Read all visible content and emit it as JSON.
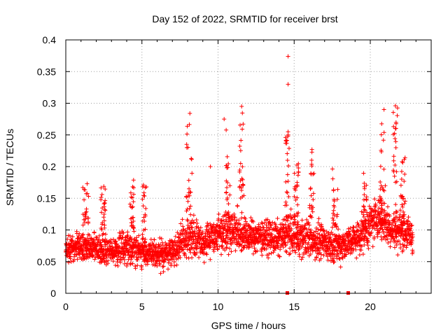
{
  "chart_data": {
    "type": "scatter",
    "title": "Day 152 of 2022, SRMTID for receiver brst",
    "xlabel": "GPS time / hours",
    "ylabel": "SRMTID / TECUs",
    "xlim": [
      0,
      24
    ],
    "ylim": [
      0,
      0.4
    ],
    "xticks": [
      0,
      5,
      10,
      15,
      20
    ],
    "xtick_labels": [
      "0",
      "5",
      "10",
      "15",
      "20"
    ],
    "yticks": [
      0,
      0.05,
      0.1,
      0.15,
      0.2,
      0.25,
      0.3,
      0.35,
      0.4
    ],
    "ytick_labels": [
      "0",
      "0.05",
      "0.1",
      "0.15",
      "0.2",
      "0.25",
      "0.3",
      "0.35",
      "0.4"
    ],
    "grid": true,
    "marker": "+",
    "color": "#ff0000",
    "baseline_markers_x": [
      14.55,
      18.55
    ],
    "envelope": {
      "x": [
        0,
        1,
        2,
        3,
        4,
        5,
        6,
        7,
        7.8,
        8.2,
        9,
        10,
        10.5,
        11,
        11.5,
        12,
        13,
        14,
        14.5,
        15,
        16,
        17,
        18,
        19,
        19.5,
        20,
        20.5,
        21,
        21.5,
        22,
        22.8
      ],
      "mid": [
        0.07,
        0.075,
        0.07,
        0.065,
        0.075,
        0.065,
        0.06,
        0.065,
        0.085,
        0.09,
        0.08,
        0.095,
        0.1,
        0.1,
        0.095,
        0.09,
        0.09,
        0.085,
        0.095,
        0.09,
        0.085,
        0.08,
        0.075,
        0.085,
        0.095,
        0.11,
        0.12,
        0.11,
        0.1,
        0.1,
        0.09
      ],
      "spread": [
        0.025,
        0.03,
        0.03,
        0.03,
        0.035,
        0.03,
        0.03,
        0.03,
        0.04,
        0.045,
        0.035,
        0.04,
        0.045,
        0.045,
        0.04,
        0.035,
        0.035,
        0.035,
        0.04,
        0.04,
        0.04,
        0.035,
        0.035,
        0.035,
        0.04,
        0.045,
        0.045,
        0.045,
        0.04,
        0.04,
        0.035
      ]
    },
    "bursts": [
      {
        "x": [
          1.1,
          1.5
        ],
        "range": [
          0.1,
          0.175
        ]
      },
      {
        "x": [
          2.3,
          2.6
        ],
        "range": [
          0.1,
          0.178
        ]
      },
      {
        "x": [
          4.2,
          4.5
        ],
        "range": [
          0.1,
          0.18
        ]
      },
      {
        "x": [
          5.0,
          5.3
        ],
        "range": [
          0.08,
          0.17
        ]
      },
      {
        "x": [
          7.9,
          8.3
        ],
        "range": [
          0.12,
          0.285
        ]
      },
      {
        "x": [
          10.5,
          10.8
        ],
        "range": [
          0.12,
          0.275
        ]
      },
      {
        "x": [
          11.4,
          11.7
        ],
        "range": [
          0.15,
          0.295
        ]
      },
      {
        "x": [
          14.4,
          14.7
        ],
        "range": [
          0.12,
          0.26
        ]
      },
      {
        "x": [
          15.0,
          15.3
        ],
        "range": [
          0.12,
          0.21
        ]
      },
      {
        "x": [
          16.0,
          16.3
        ],
        "range": [
          0.12,
          0.235
        ]
      },
      {
        "x": [
          17.5,
          17.9
        ],
        "range": [
          0.1,
          0.2
        ]
      },
      {
        "x": [
          19.5,
          19.8
        ],
        "range": [
          0.1,
          0.19
        ]
      },
      {
        "x": [
          20.6,
          21.0
        ],
        "range": [
          0.12,
          0.29
        ]
      },
      {
        "x": [
          21.5,
          21.8
        ],
        "range": [
          0.12,
          0.296
        ]
      },
      {
        "x": [
          22.0,
          22.3
        ],
        "range": [
          0.12,
          0.22
        ]
      }
    ],
    "outliers": [
      {
        "x": 14.6,
        "y": 0.374
      },
      {
        "x": 14.6,
        "y": 0.33
      },
      {
        "x": 14.6,
        "y": 0.255
      },
      {
        "x": 14.6,
        "y": 0.25
      },
      {
        "x": 8.15,
        "y": 0.284
      },
      {
        "x": 11.55,
        "y": 0.295
      },
      {
        "x": 10.4,
        "y": 0.275
      },
      {
        "x": 20.9,
        "y": 0.29
      },
      {
        "x": 21.65,
        "y": 0.296
      },
      {
        "x": 21.65,
        "y": 0.26
      },
      {
        "x": 9.5,
        "y": 0.2
      },
      {
        "x": 5.1,
        "y": 0.171
      }
    ]
  }
}
